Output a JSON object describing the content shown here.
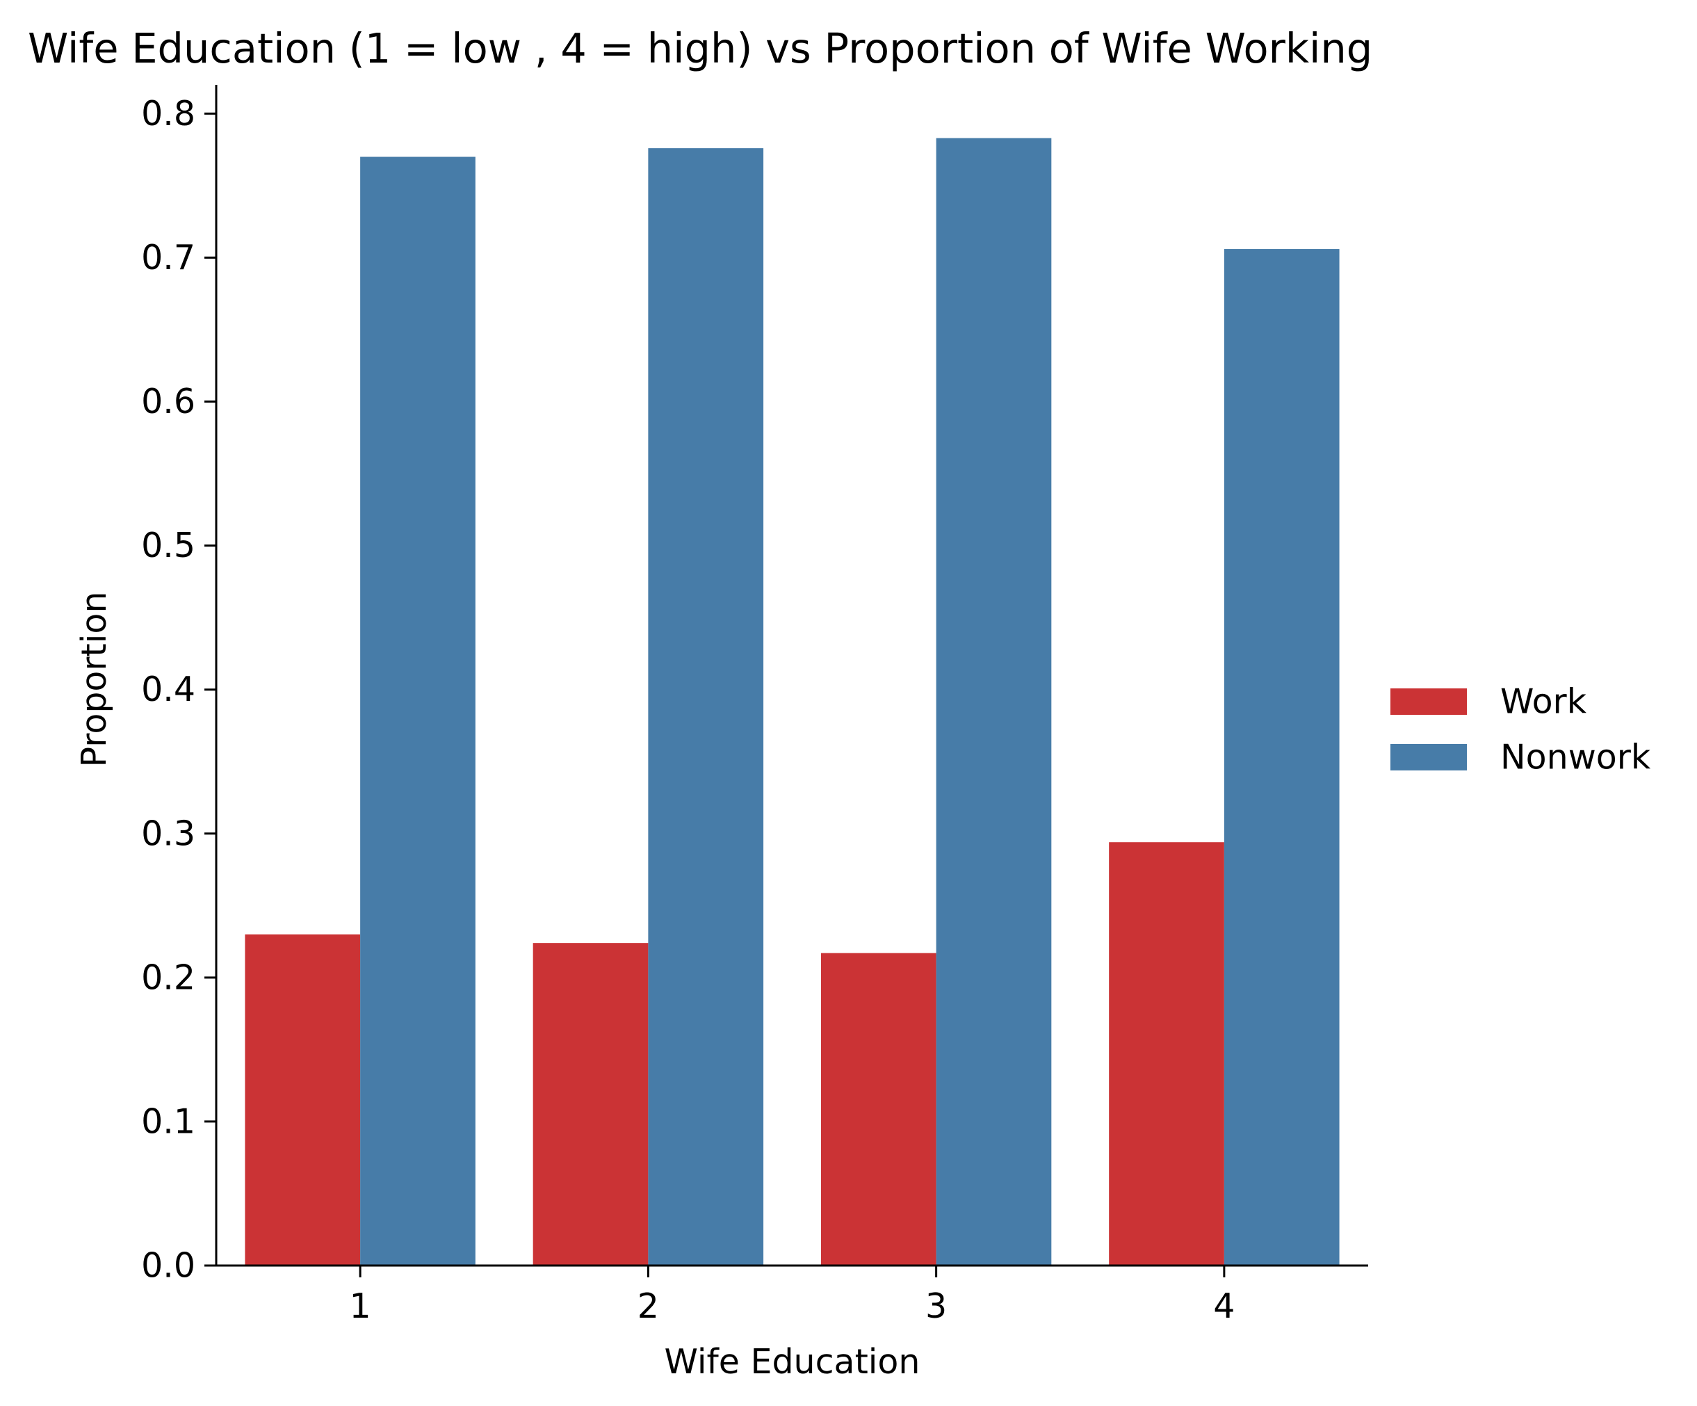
{
  "chart_data": {
    "type": "bar",
    "title": "Wife Education (1 = low , 4 = high) vs Proportion of Wife Working",
    "xlabel": "Wife Education",
    "ylabel": "Proportion",
    "categories": [
      "1",
      "2",
      "3",
      "4"
    ],
    "series": [
      {
        "name": "Work",
        "color": "#cb3335",
        "values": [
          0.23,
          0.224,
          0.217,
          0.294
        ]
      },
      {
        "name": "Nonwork",
        "color": "#477ca8",
        "values": [
          0.77,
          0.776,
          0.783,
          0.706
        ]
      }
    ],
    "ylim": [
      0,
      0.82
    ],
    "yticks": [
      0.0,
      0.1,
      0.2,
      0.3,
      0.4,
      0.5,
      0.6,
      0.7,
      0.8
    ],
    "ytick_labels": [
      "0.0",
      "0.1",
      "0.2",
      "0.3",
      "0.4",
      "0.5",
      "0.6",
      "0.7",
      "0.8"
    ],
    "grid": false,
    "legend_position": "right"
  }
}
